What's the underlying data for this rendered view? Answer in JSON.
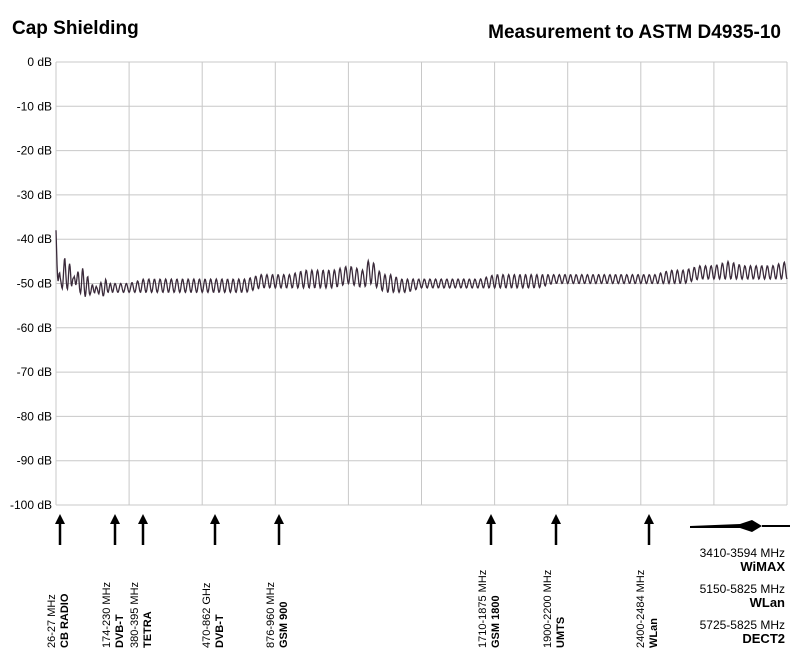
{
  "header": {
    "title_left": "Cap Shielding",
    "title_right": "Measurement to ASTM D4935-10"
  },
  "chart_data": {
    "type": "line",
    "title": "Cap Shielding",
    "subtitle": "Measurement to ASTM D4935-10",
    "ylabel": "",
    "xlabel": "",
    "y_ticks": [
      "0 dB",
      "-10 dB",
      "-20 dB",
      "-30 dB",
      "-40 dB",
      "-50 dB",
      "-60 dB",
      "-70 dB",
      "-80 dB",
      "-90 dB",
      "-100 dB"
    ],
    "ylim": [
      -100,
      0
    ],
    "grid": true,
    "series_color": "#3a2a3a",
    "x_norm": [
      0.0,
      0.003,
      0.006,
      0.009,
      0.012,
      0.016,
      0.02,
      0.024,
      0.028,
      0.032,
      0.036,
      0.04,
      0.044,
      0.048,
      0.052,
      0.056,
      0.06,
      0.064,
      0.068,
      0.072,
      0.08,
      0.09,
      0.1,
      0.12,
      0.14,
      0.16,
      0.18,
      0.2,
      0.22,
      0.24,
      0.26,
      0.28,
      0.3,
      0.32,
      0.34,
      0.36,
      0.38,
      0.4,
      0.42,
      0.43,
      0.44,
      0.45,
      0.46,
      0.47,
      0.48,
      0.5,
      0.52,
      0.54,
      0.56,
      0.58,
      0.6,
      0.62,
      0.64,
      0.66,
      0.68,
      0.7,
      0.72,
      0.74,
      0.76,
      0.78,
      0.8,
      0.82,
      0.84,
      0.86,
      0.88,
      0.9,
      0.92,
      0.94,
      0.96,
      0.98,
      1.0
    ],
    "y_env_upper": [
      -37,
      -44,
      -49,
      -47,
      -44,
      -49,
      -43,
      -49,
      -45,
      -49,
      -46,
      -50,
      -48,
      -51,
      -49,
      -51,
      -49,
      -51,
      -49,
      -50,
      -50,
      -50,
      -50,
      -49,
      -49,
      -49,
      -49,
      -49,
      -49,
      -49,
      -49,
      -48,
      -48,
      -48,
      -47,
      -47,
      -47,
      -46,
      -47,
      -44,
      -47,
      -48,
      -48,
      -49,
      -49,
      -49,
      -49,
      -49,
      -49,
      -49,
      -48,
      -48,
      -48,
      -48,
      -48,
      -48,
      -48,
      -48,
      -48,
      -48,
      -48,
      -48,
      -47,
      -47,
      -46,
      -46,
      -45,
      -46,
      -46,
      -46,
      -45
    ],
    "y_env_lower": [
      -45,
      -50,
      -52,
      -51,
      -48,
      -52,
      -50,
      -52,
      -50,
      -53,
      -51,
      -53,
      -52,
      -53,
      -52,
      -53,
      -52,
      -53,
      -52,
      -52,
      -52,
      -52,
      -52,
      -52,
      -52,
      -52,
      -52,
      -52,
      -52,
      -52,
      -52,
      -51,
      -51,
      -51,
      -51,
      -51,
      -51,
      -50,
      -51,
      -50,
      -51,
      -52,
      -52,
      -52,
      -52,
      -51,
      -51,
      -51,
      -51,
      -51,
      -51,
      -51,
      -51,
      -51,
      -50,
      -50,
      -50,
      -50,
      -50,
      -50,
      -50,
      -50,
      -50,
      -50,
      -49,
      -49,
      -49,
      -49,
      -49,
      -49,
      -49
    ],
    "bands": [
      {
        "range": "26-27 MHz",
        "name": "CB RADIO"
      },
      {
        "range": "174-230 MHz",
        "name": "DVB-T"
      },
      {
        "range": "380-395 MHz",
        "name": "TETRA"
      },
      {
        "range": "470-862 GHz",
        "name": "DVB-T"
      },
      {
        "range": "876-960 MHz",
        "name": "GSM 900"
      },
      {
        "range": "1710-1875 MHz",
        "name": "GSM 1800"
      },
      {
        "range": "1900-2200 MHz",
        "name": "UMTS"
      },
      {
        "range": "2400-2484 MHz",
        "name": "WLan"
      }
    ],
    "right_bands": [
      {
        "range": "3410-3594 MHz",
        "name": "WiMAX"
      },
      {
        "range": "5150-5825 MHz",
        "name": "WLan"
      },
      {
        "range": "5725-5825 MHz",
        "name": "DECT2"
      }
    ]
  }
}
